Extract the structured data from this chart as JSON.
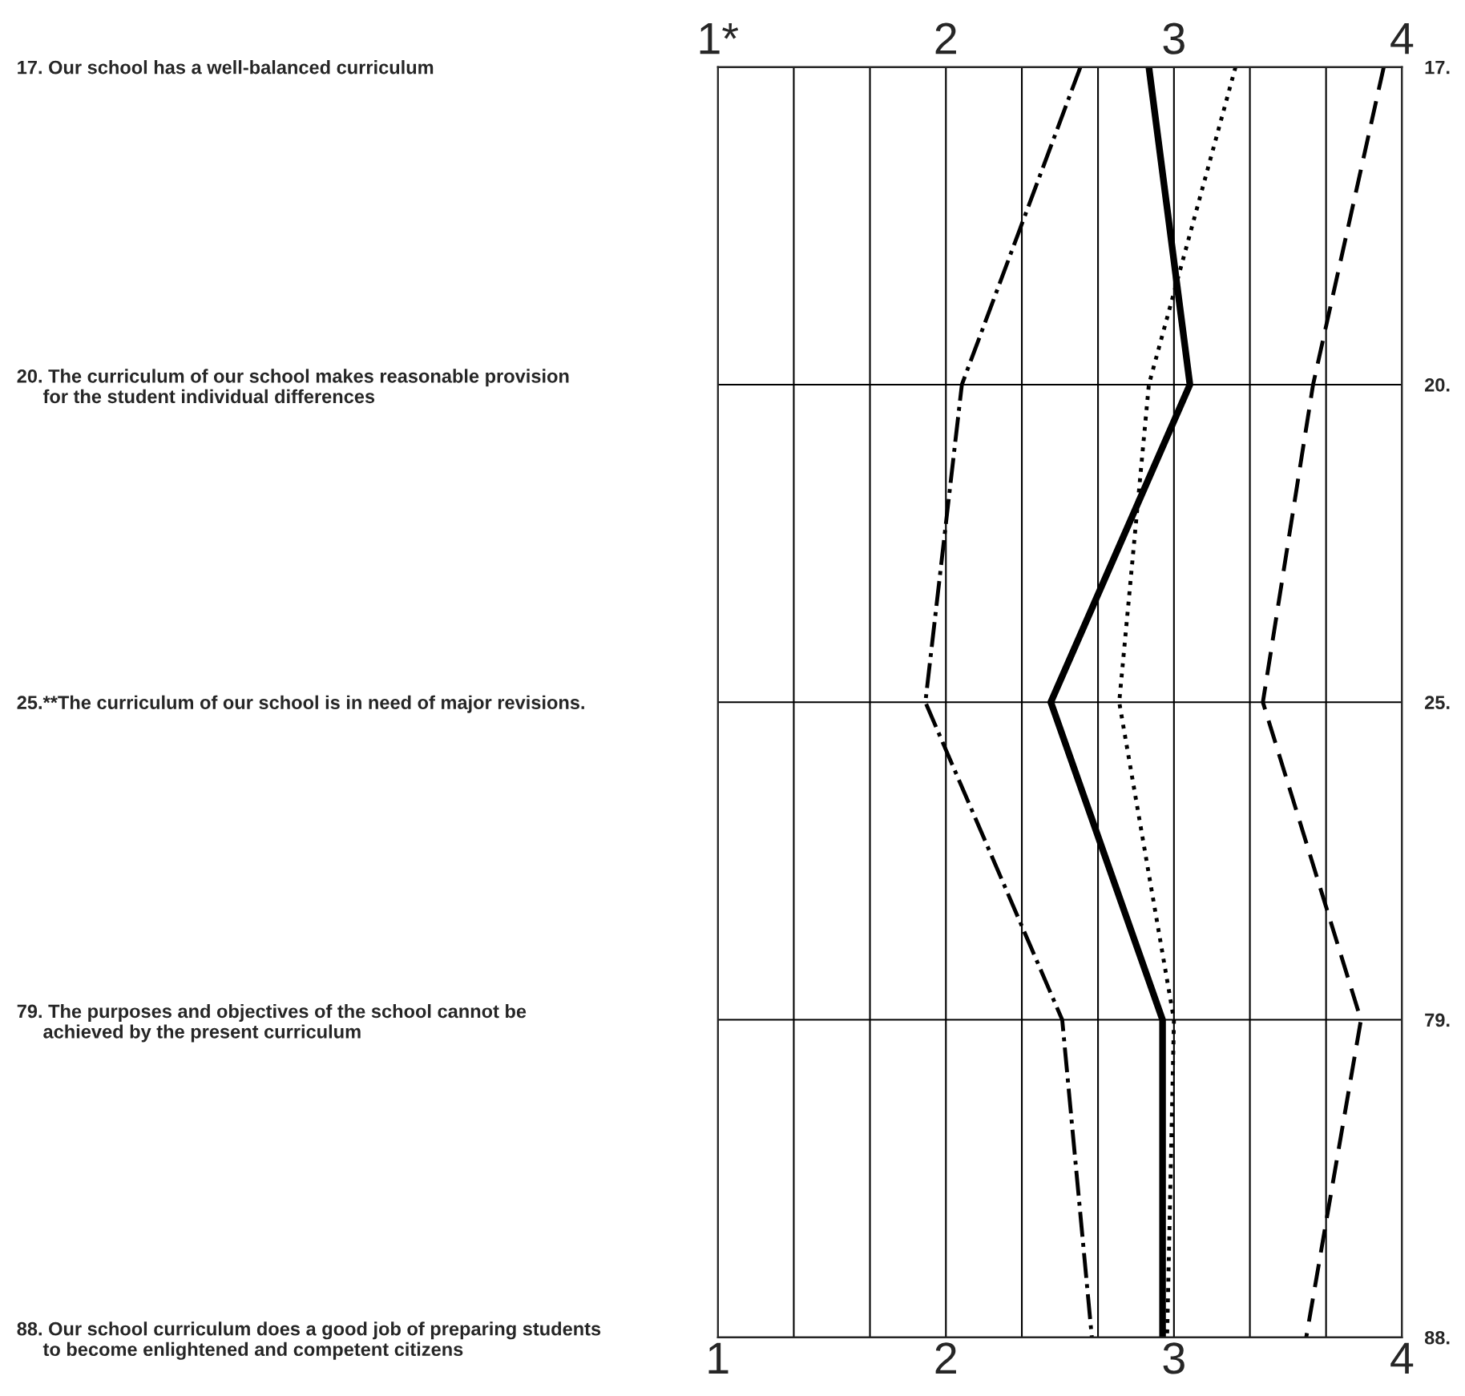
{
  "chart_data": {
    "type": "line",
    "orientation": "horizontal",
    "categories": [
      "17. Our school has a well-balanced curriculum",
      "20. The curriculum of our school makes reasonable provision\n     for the student individual differences",
      "25.**The curriculum of our school is in need of major revisions.",
      "79. The purposes and objectives of the school cannot be\n     achieved by the present curriculum",
      "88. Our school curriculum does a good job of preparing students\n     to become enlightened and competent citizens"
    ],
    "y2_categories": [
      "17.",
      "20.",
      "25.",
      "79.",
      "88."
    ],
    "series": [
      {
        "color": "#000000",
        "line_style": "dashdot",
        "values": [
          2.59,
          2.07,
          1.91,
          2.51,
          2.64
        ]
      },
      {
        "color": "#000000",
        "line_style": "solid",
        "values": [
          2.89,
          3.07,
          2.46,
          2.95,
          2.95
        ]
      },
      {
        "color": "#000000",
        "line_style": "dotted",
        "values": [
          3.27,
          2.89,
          2.76,
          3.0,
          2.97
        ]
      },
      {
        "color": "#000000",
        "line_style": "dashed",
        "values": [
          3.92,
          3.61,
          3.39,
          3.82,
          3.58
        ]
      }
    ],
    "xlim": [
      1,
      4
    ],
    "xticks": [
      1,
      {
        "value": 1.333,
        "label": null
      },
      {
        "value": 1.667,
        "label": null
      },
      2,
      {
        "value": 2.333,
        "label": null
      },
      {
        "value": 2.667,
        "label": null
      },
      3,
      {
        "value": 3.333,
        "label": null
      },
      {
        "value": 3.667,
        "label": null
      },
      4
    ],
    "x2lim": [
      1,
      4
    ],
    "x2ticks": [
      {
        "value": 1,
        "label": "1*"
      },
      2,
      3,
      4
    ],
    "grid": true,
    "legend": false
  }
}
